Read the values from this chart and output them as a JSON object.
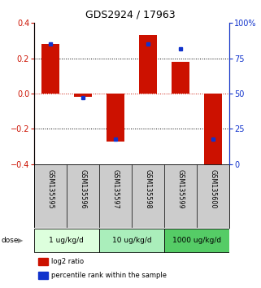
{
  "title": "GDS2924 / 17963",
  "samples": [
    "GSM135595",
    "GSM135596",
    "GSM135597",
    "GSM135598",
    "GSM135599",
    "GSM135600"
  ],
  "log2_ratios": [
    0.28,
    -0.02,
    -0.27,
    0.33,
    0.18,
    -0.42
  ],
  "percentile_ranks": [
    85,
    47,
    18,
    85,
    82,
    18
  ],
  "ylim_left": [
    -0.4,
    0.4
  ],
  "ylim_right": [
    0,
    100
  ],
  "yticks_left": [
    -0.4,
    -0.2,
    0.0,
    0.2,
    0.4
  ],
  "yticks_right": [
    0,
    25,
    50,
    75,
    100
  ],
  "ytick_labels_right": [
    "0",
    "25",
    "50",
    "75",
    "100%"
  ],
  "bar_color": "#cc1100",
  "dot_color": "#1133cc",
  "bar_width": 0.55,
  "groups": [
    {
      "label": "1 ug/kg/d",
      "indices": [
        0,
        1
      ],
      "color": "#ddffdd"
    },
    {
      "label": "10 ug/kg/d",
      "indices": [
        2,
        3
      ],
      "color": "#aaeebb"
    },
    {
      "label": "1000 ug/kg/d",
      "indices": [
        4,
        5
      ],
      "color": "#55cc66"
    }
  ],
  "dose_label": "dose",
  "legend_red": "log2 ratio",
  "legend_blue": "percentile rank within the sample",
  "background_color": "#ffffff",
  "plot_bg": "#ffffff",
  "tick_color_left": "#cc1100",
  "tick_color_right": "#1133cc",
  "sample_bg": "#cccccc"
}
